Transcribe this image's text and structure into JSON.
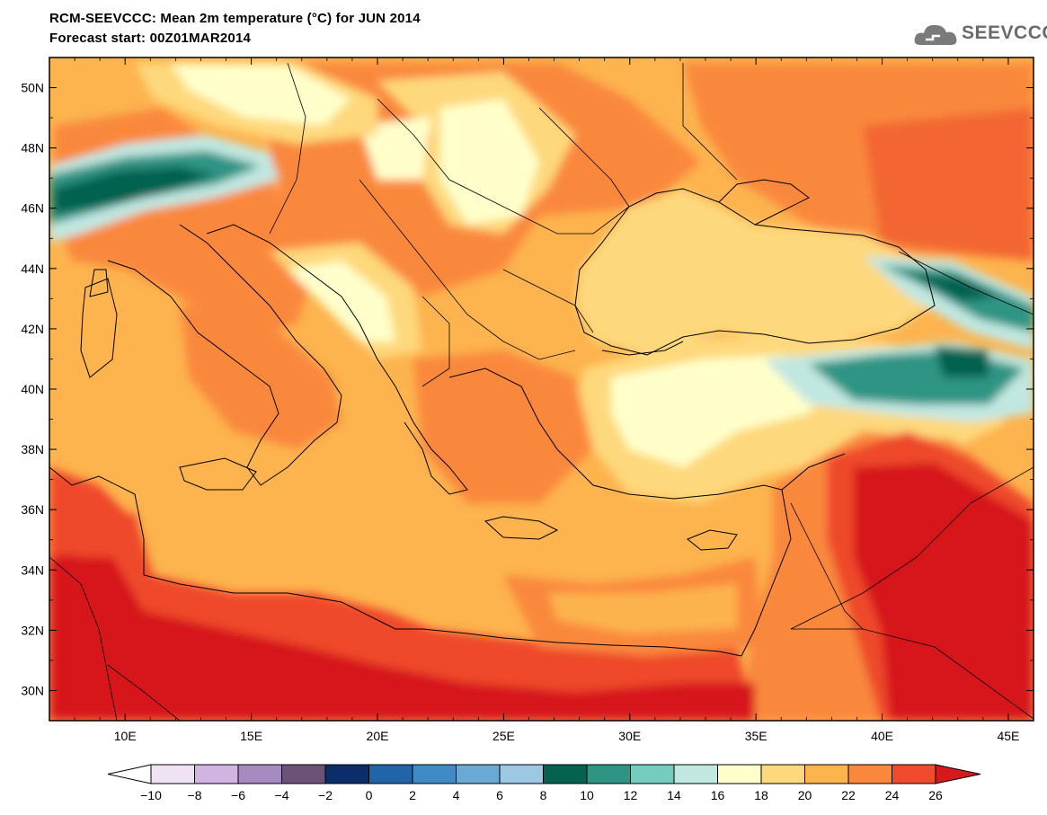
{
  "header": {
    "title_line1": "RCM-SEEVCCC: Mean 2m temperature (°C) for JUN 2014",
    "title_line2": "Forecast start: 00Z01MAR2014"
  },
  "logo": {
    "text": "SEEVCCC",
    "icon": "cloud-icon"
  },
  "map": {
    "lon_range": [
      7,
      46
    ],
    "lat_range": [
      29,
      51
    ],
    "lat_ticks": [
      "50N",
      "48N",
      "46N",
      "44N",
      "42N",
      "40N",
      "38N",
      "36N",
      "34N",
      "32N",
      "30N"
    ],
    "lon_ticks": [
      "10E",
      "15E",
      "20E",
      "25E",
      "30E",
      "35E",
      "40E",
      "45E"
    ]
  },
  "colorbar": {
    "labels": [
      "−10",
      "−8",
      "−6",
      "−4",
      "−2",
      "0",
      "2",
      "4",
      "6",
      "8",
      "10",
      "12",
      "14",
      "16",
      "18",
      "20",
      "22",
      "24",
      "26"
    ],
    "under_color": "#ffffff",
    "over_color": "#d7191c",
    "colors": [
      "#efe3f3",
      "#d2b4e2",
      "#a68bc1",
      "#6b5378",
      "#0b2e6b",
      "#2164a8",
      "#3f8bc6",
      "#6aa9d4",
      "#9cc8e3",
      "#05624f",
      "#2e9484",
      "#75cbbd",
      "#c1e7e1",
      "#ffffcb",
      "#fed87c",
      "#fdb34e",
      "#f9883c",
      "#ee4a2b"
    ]
  }
}
